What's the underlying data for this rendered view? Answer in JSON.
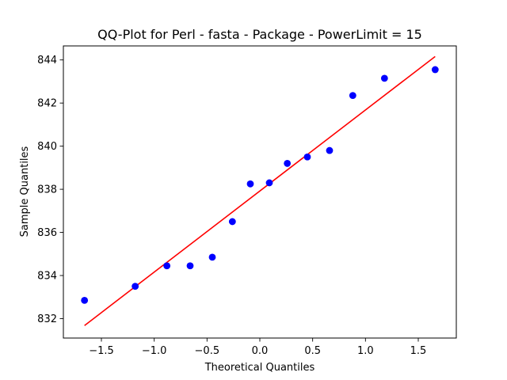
{
  "chart_data": {
    "type": "scatter",
    "title": "QQ-Plot for Perl - fasta - Package - PowerLimit = 15",
    "xlabel": "Theoretical Quantiles",
    "ylabel": "Sample Quantiles",
    "xlim": [
      -1.86,
      1.86
    ],
    "ylim": [
      831.1,
      844.65
    ],
    "xticks": [
      -1.5,
      -1.0,
      -0.5,
      0.0,
      0.5,
      1.0,
      1.5
    ],
    "xtick_labels": [
      "−1.5",
      "−1.0",
      "−0.5",
      "0.0",
      "0.5",
      "1.0",
      "1.5"
    ],
    "yticks": [
      832,
      834,
      836,
      838,
      840,
      842,
      844
    ],
    "ytick_labels": [
      "832",
      "834",
      "836",
      "838",
      "840",
      "842",
      "844"
    ],
    "grid": false,
    "series": [
      {
        "kind": "points",
        "color": "#0000ff",
        "x": [
          -1.66,
          -1.18,
          -0.88,
          -0.66,
          -0.45,
          -0.26,
          -0.09,
          0.09,
          0.26,
          0.45,
          0.66,
          0.88,
          1.18,
          1.66
        ],
        "y": [
          832.85,
          833.5,
          834.45,
          834.45,
          834.85,
          836.5,
          838.25,
          838.3,
          839.2,
          839.5,
          839.8,
          842.35,
          843.15,
          843.55
        ]
      },
      {
        "kind": "line",
        "color": "#ff0000",
        "x": [
          -1.66,
          1.66
        ],
        "y": [
          831.68,
          844.16
        ]
      }
    ]
  }
}
